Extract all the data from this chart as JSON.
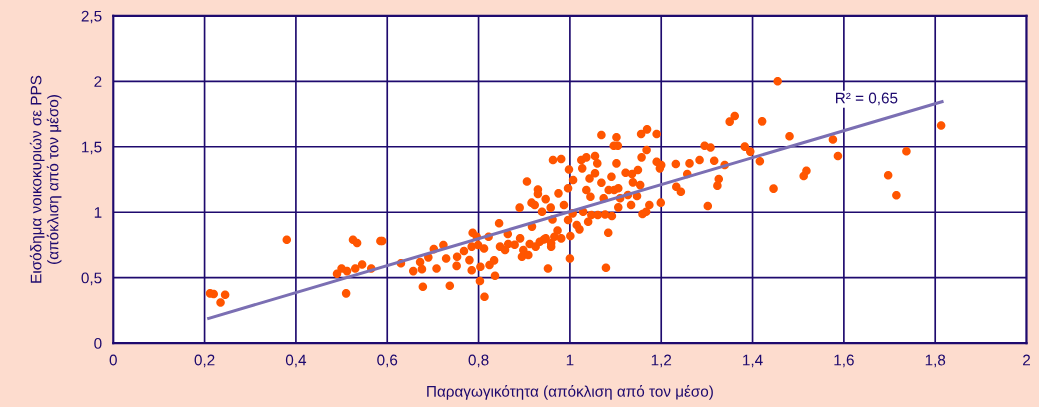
{
  "chart_data": {
    "type": "scatter",
    "xlabel": "Παραγωγικότητα (απόκλιση από τον μέσο)",
    "ylabel": "Εισόδημα νοικοκυριών σε PPS\n(απόκλιση από τον μέσο)",
    "annotations": [
      "R² = 0,65"
    ],
    "xlim": [
      0,
      2
    ],
    "ylim": [
      0,
      2.5
    ],
    "xticks": [
      0,
      {
        "value": 0.2,
        "label": "0,2"
      },
      {
        "value": 0.4,
        "label": "0,4"
      },
      {
        "value": 0.6,
        "label": "0,6"
      },
      {
        "value": 0.8,
        "label": "0,8"
      },
      1,
      {
        "value": 1.2,
        "label": "1,2"
      },
      {
        "value": 1.4,
        "label": "1,4"
      },
      {
        "value": 1.6,
        "label": "1,6"
      },
      {
        "value": 1.8,
        "label": "1,8"
      },
      2
    ],
    "yticks": [
      0,
      {
        "value": 0.5,
        "label": "0,5"
      },
      1,
      {
        "value": 1.5,
        "label": "1,5"
      },
      2,
      {
        "value": 2.5,
        "label": "2,5"
      }
    ],
    "grid": true,
    "marker": "circle",
    "series": [
      {
        "color": "#ff5500",
        "x": [
          0.212,
          0.22,
          0.245,
          0.235,
          0.38,
          0.525,
          0.585,
          0.534,
          0.589,
          0.5,
          0.49,
          0.512,
          0.51,
          0.53,
          0.545,
          0.565,
          0.63,
          0.657,
          0.672,
          0.678,
          0.676,
          0.69,
          0.702,
          0.708,
          0.723,
          0.729,
          0.737,
          0.752,
          0.753,
          0.768,
          0.78,
          0.785,
          0.787,
          0.785,
          0.796,
          0.799,
          0.804,
          0.803,
          0.813,
          0.812,
          0.822,
          0.824,
          0.834,
          0.836,
          0.845,
          0.847,
          0.858,
          0.864,
          0.865,
          0.879,
          0.89,
          0.891,
          0.895,
          0.898,
          0.906,
          0.909,
          0.916,
          0.917,
          0.912,
          0.923,
          0.925,
          0.93,
          0.93,
          0.934,
          0.939,
          0.943,
          0.947,
          0.947,
          0.952,
          0.958,
          0.959,
          0.959,
          0.962,
          0.963,
          0.966,
          0.973,
          0.975,
          0.981,
          0.981,
          0.987,
          0.996,
          0.996,
          0.998,
          1.0,
          1.001,
          1.007,
          1.006,
          1.015,
          1.021,
          1.025,
          1.027,
          1.029,
          1.036,
          1.036,
          1.04,
          1.043,
          1.045,
          1.047,
          1.055,
          1.055,
          1.06,
          1.061,
          1.069,
          1.069,
          1.074,
          1.077,
          1.079,
          1.084,
          1.085,
          1.091,
          1.092,
          1.096,
          1.097,
          1.102,
          1.102,
          1.105,
          1.106,
          1.106,
          1.11,
          1.122,
          1.127,
          1.134,
          1.136,
          1.138,
          1.147,
          1.149,
          1.154,
          1.156,
          1.157,
          1.159,
          1.169,
          1.168,
          1.167,
          1.174,
          1.19,
          1.19,
          1.197,
          1.199,
          1.2,
          1.232,
          1.233,
          1.243,
          1.257,
          1.262,
          1.284,
          1.295,
          1.302,
          1.308,
          1.316,
          1.323,
          1.326,
          1.339,
          1.35,
          1.361,
          1.455,
          1.421,
          1.481,
          1.383,
          1.395,
          1.416,
          1.576,
          1.587,
          1.518,
          1.512,
          1.446,
          1.697,
          1.715,
          1.737,
          1.813
        ],
        "values": [
          0.38,
          0.375,
          0.37,
          0.31,
          0.79,
          0.79,
          0.78,
          0.765,
          0.78,
          0.57,
          0.53,
          0.55,
          0.38,
          0.57,
          0.6,
          0.57,
          0.61,
          0.55,
          0.62,
          0.43,
          0.565,
          0.655,
          0.718,
          0.57,
          0.75,
          0.647,
          0.438,
          0.59,
          0.66,
          0.703,
          0.634,
          0.557,
          0.843,
          0.737,
          0.813,
          0.749,
          0.583,
          0.474,
          0.354,
          0.723,
          0.813,
          0.596,
          0.632,
          0.514,
          0.915,
          0.737,
          0.711,
          0.833,
          0.757,
          0.752,
          1.035,
          0.8,
          0.66,
          0.711,
          1.234,
          0.673,
          1.073,
          0.89,
          0.757,
          1.055,
          0.737,
          1.174,
          1.139,
          0.775,
          1.004,
          0.792,
          1.1,
          0.8,
          0.57,
          1.035,
          0.762,
          0.737,
          0.945,
          1.399,
          0.813,
          0.86,
          1.144,
          1.406,
          0.8,
          1.055,
          1.183,
          0.94,
          1.327,
          0.647,
          0.818,
          1.246,
          0.991,
          0.902,
          0.869,
          1.399,
          1.335,
          1.004,
          1.419,
          1.169,
          0.927,
          1.258,
          1.118,
          0.978,
          1.429,
          1.297,
          1.373,
          0.978,
          1.59,
          1.225,
          1.106,
          0.983,
          0.575,
          0.843,
          1.169,
          1.271,
          0.971,
          1.508,
          1.169,
          1.572,
          1.373,
          1.508,
          1.183,
          1.037,
          1.106,
          1.302,
          1.131,
          1.055,
          1.292,
          1.228,
          1.124,
          1.322,
          1.207,
          1.597,
          1.419,
          0.986,
          1.633,
          1.475,
          1.004,
          1.055,
          1.597,
          1.386,
          1.335,
          1.073,
          1.36,
          1.368,
          1.195,
          1.157,
          1.292,
          1.373,
          1.399,
          1.508,
          1.047,
          1.495,
          1.393,
          1.203,
          1.253,
          1.36,
          1.692,
          1.735,
          2.0,
          1.694,
          1.58,
          1.501,
          1.463,
          1.389,
          1.555,
          1.43,
          1.317,
          1.277,
          1.18,
          1.282,
          1.129,
          1.466,
          1.662
        ]
      },
      {
        "type": "line",
        "color": "#7b6fb3",
        "marker": "none",
        "x": [
          0.209,
          1.815
        ],
        "values": [
          0.189,
          1.845
        ]
      }
    ]
  }
}
